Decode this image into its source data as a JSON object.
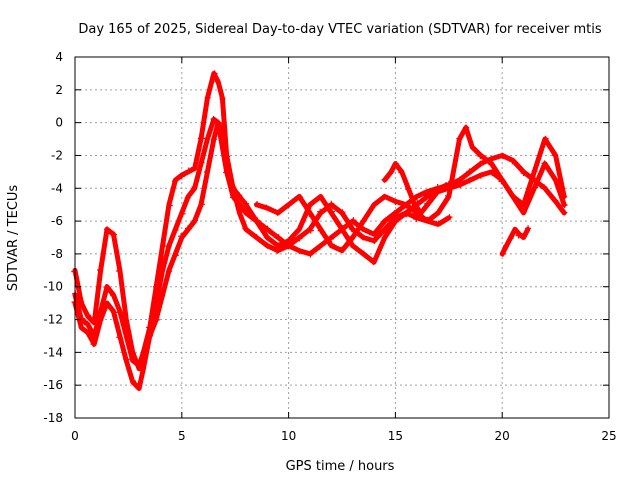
{
  "chart_data": {
    "type": "scatter",
    "title": "Day 165 of 2025, Sidereal Day-to-day VTEC variation (SDTVAR) for receiver mtis",
    "xlabel": "GPS time / hours",
    "ylabel": "SDTVAR / TECUs",
    "xlim": [
      0,
      25
    ],
    "ylim": [
      -18,
      4
    ],
    "x_ticks": [
      0,
      5,
      10,
      15,
      20,
      25
    ],
    "y_ticks": [
      4,
      2,
      0,
      -2,
      -4,
      -6,
      -8,
      -10,
      -12,
      -14,
      -16,
      -18
    ],
    "grid": true,
    "marker": "+",
    "color": "#ff0000",
    "series": [
      {
        "x": [
          0.0,
          0.3,
          0.6,
          0.9,
          1.2,
          1.5,
          1.8,
          2.1,
          2.4,
          2.7,
          3.0,
          3.2,
          3.5,
          3.8,
          4.1,
          4.4,
          4.7,
          5.0,
          5.3,
          5.6,
          5.9,
          6.2,
          6.5,
          6.7,
          6.9,
          7.1,
          7.4,
          7.7,
          8.0,
          8.5,
          9.0,
          9.5,
          10.0,
          10.5,
          11.0,
          11.5,
          12.0,
          12.5,
          13.0,
          13.5,
          14.0,
          14.5,
          15.0,
          15.5,
          16.0,
          16.5,
          17.0,
          17.5,
          18.0,
          18.5,
          19.0,
          19.5,
          20.0,
          20.5,
          21.0,
          21.5,
          22.0,
          22.5,
          22.9
        ],
        "y": [
          -9.0,
          -11.0,
          -11.8,
          -12.2,
          -9.0,
          -6.5,
          -6.8,
          -9.0,
          -12.0,
          -14.0,
          -15.0,
          -14.5,
          -13.0,
          -11.0,
          -9.0,
          -7.5,
          -6.5,
          -5.5,
          -4.5,
          -4.0,
          -2.5,
          -1.0,
          0.2,
          0.0,
          -1.5,
          -3.0,
          -4.5,
          -5.0,
          -5.5,
          -6.0,
          -6.5,
          -7.0,
          -7.5,
          -7.8,
          -8.0,
          -7.5,
          -7.0,
          -6.5,
          -6.0,
          -6.5,
          -6.8,
          -6.0,
          -5.5,
          -5.0,
          -4.5,
          -4.2,
          -4.0,
          -3.8,
          -3.5,
          -3.0,
          -2.5,
          -2.2,
          -2.0,
          -2.3,
          -3.0,
          -3.5,
          -4.0,
          -4.8,
          -5.5
        ]
      },
      {
        "x": [
          0.0,
          0.3,
          0.6,
          0.9,
          1.2,
          1.5,
          1.8,
          2.1,
          2.4,
          2.7,
          3.0,
          3.2,
          3.5,
          3.8,
          4.1,
          4.4,
          4.7,
          5.0,
          5.3,
          5.6,
          5.9,
          6.2,
          6.5,
          6.7,
          6.9,
          7.1,
          7.4,
          7.7,
          8.0,
          8.5,
          9.0,
          9.5,
          10.0,
          10.5,
          11.0,
          11.5,
          12.0,
          12.5,
          13.0,
          13.5,
          14.0,
          14.5,
          15.0,
          15.5,
          16.0,
          16.5,
          17.0,
          17.5,
          18.0,
          18.3,
          18.6,
          19.0,
          19.5,
          20.0,
          20.5,
          21.0,
          21.5,
          22.0,
          22.5,
          22.9
        ],
        "y": [
          -10.5,
          -12.0,
          -12.3,
          -13.0,
          -11.5,
          -10.0,
          -10.5,
          -11.5,
          -13.0,
          -14.5,
          -14.8,
          -14.0,
          -12.5,
          -10.0,
          -7.5,
          -5.0,
          -3.5,
          -3.2,
          -3.0,
          -2.8,
          -1.0,
          1.5,
          3.0,
          2.5,
          1.5,
          -2.0,
          -4.0,
          -4.5,
          -5.0,
          -6.0,
          -7.0,
          -7.5,
          -7.2,
          -6.5,
          -5.0,
          -4.5,
          -5.5,
          -6.5,
          -7.5,
          -8.0,
          -8.5,
          -7.0,
          -6.0,
          -5.5,
          -5.8,
          -6.0,
          -5.5,
          -4.5,
          -1.0,
          -0.3,
          -1.5,
          -2.0,
          -2.5,
          -3.5,
          -4.5,
          -5.0,
          -3.0,
          -1.0,
          -2.0,
          -4.5
        ]
      },
      {
        "x": [
          0.0,
          0.3,
          0.6,
          0.9,
          1.2,
          1.5,
          1.8,
          2.1,
          2.4,
          2.7,
          3.0,
          3.2,
          3.5,
          3.8,
          4.1,
          4.4,
          4.7,
          5.0,
          5.3,
          5.6,
          5.9,
          6.2,
          6.5,
          6.7,
          6.9,
          7.1,
          7.4,
          7.7,
          8.0,
          8.5,
          9.0,
          9.5,
          10.0,
          10.5,
          11.0,
          11.5,
          12.0,
          12.5,
          13.0,
          13.5,
          14.0,
          14.5,
          15.0,
          15.5,
          16.0,
          16.5,
          17.0,
          17.5,
          18.0,
          18.5,
          19.0,
          19.5,
          20.0,
          20.5,
          21.0,
          21.5,
          22.0,
          22.5,
          22.9
        ],
        "y": [
          -11.0,
          -12.5,
          -12.8,
          -13.5,
          -12.0,
          -11.0,
          -11.5,
          -13.0,
          -14.5,
          -15.8,
          -16.2,
          -15.0,
          -13.0,
          -12.0,
          -10.5,
          -9.0,
          -8.0,
          -7.0,
          -6.5,
          -6.0,
          -5.0,
          -3.0,
          -1.0,
          0.0,
          -0.5,
          -2.5,
          -4.0,
          -5.5,
          -6.5,
          -7.0,
          -7.5,
          -7.8,
          -7.5,
          -7.0,
          -6.5,
          -5.5,
          -5.0,
          -5.5,
          -6.5,
          -7.0,
          -7.2,
          -6.5,
          -5.8,
          -5.5,
          -5.0,
          -4.5,
          -4.2,
          -4.0,
          -3.8,
          -3.5,
          -3.2,
          -3.0,
          -3.5,
          -4.5,
          -5.5,
          -4.0,
          -2.5,
          -3.5,
          -5.0
        ]
      },
      {
        "x": [
          8.5,
          9.0,
          9.5,
          10.0,
          10.5,
          11.0,
          11.5,
          12.0,
          12.5,
          13.0,
          13.5,
          14.0,
          14.5,
          15.0,
          15.5,
          16.0,
          16.5,
          17.0,
          17.5
        ],
        "y": [
          -5.0,
          -5.2,
          -5.5,
          -5.0,
          -4.5,
          -5.5,
          -6.5,
          -7.5,
          -7.8,
          -7.0,
          -6.0,
          -5.0,
          -4.5,
          -4.8,
          -5.0,
          -5.5,
          -6.0,
          -6.2,
          -5.8
        ]
      },
      {
        "x": [
          14.5,
          14.8,
          15.0,
          15.3,
          15.6,
          15.9,
          16.2,
          16.5,
          16.8,
          17.1,
          17.4
        ],
        "y": [
          -3.5,
          -3.0,
          -2.5,
          -3.0,
          -4.0,
          -5.0,
          -5.5,
          -5.0,
          -4.5,
          -4.0,
          -3.8
        ]
      },
      {
        "x": [
          20.0,
          20.2,
          20.4,
          20.6,
          20.8,
          21.0,
          21.2
        ],
        "y": [
          -8.0,
          -7.5,
          -7.0,
          -6.5,
          -6.8,
          -7.0,
          -6.5
        ]
      }
    ]
  }
}
